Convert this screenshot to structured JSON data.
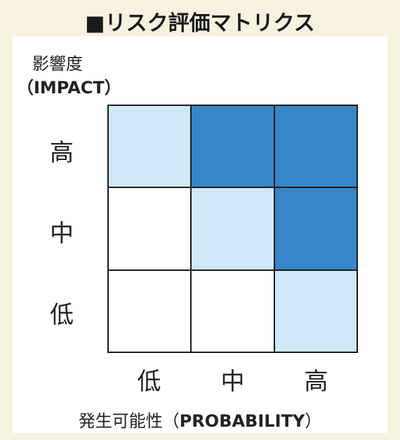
{
  "title": "■リスク評価マトリクス",
  "y_axis": {
    "label_jp": "影響度",
    "label_en": "（IMPACT）"
  },
  "x_axis": {
    "label_jp": "発生可能性",
    "label_en_open": "（",
    "label_en": "PROBABILITY",
    "label_en_close": "）"
  },
  "row_labels": [
    "高",
    "中",
    "低"
  ],
  "col_labels": [
    "低",
    "中",
    "高"
  ],
  "matrix": [
    [
      "mid",
      "high",
      "high"
    ],
    [
      "low",
      "mid",
      "high"
    ],
    [
      "low",
      "low",
      "mid"
    ]
  ],
  "colors": {
    "low": "#ffffff",
    "mid": "#cfe9f9",
    "high": "#3786c8",
    "background": "#f7f2e0"
  }
}
